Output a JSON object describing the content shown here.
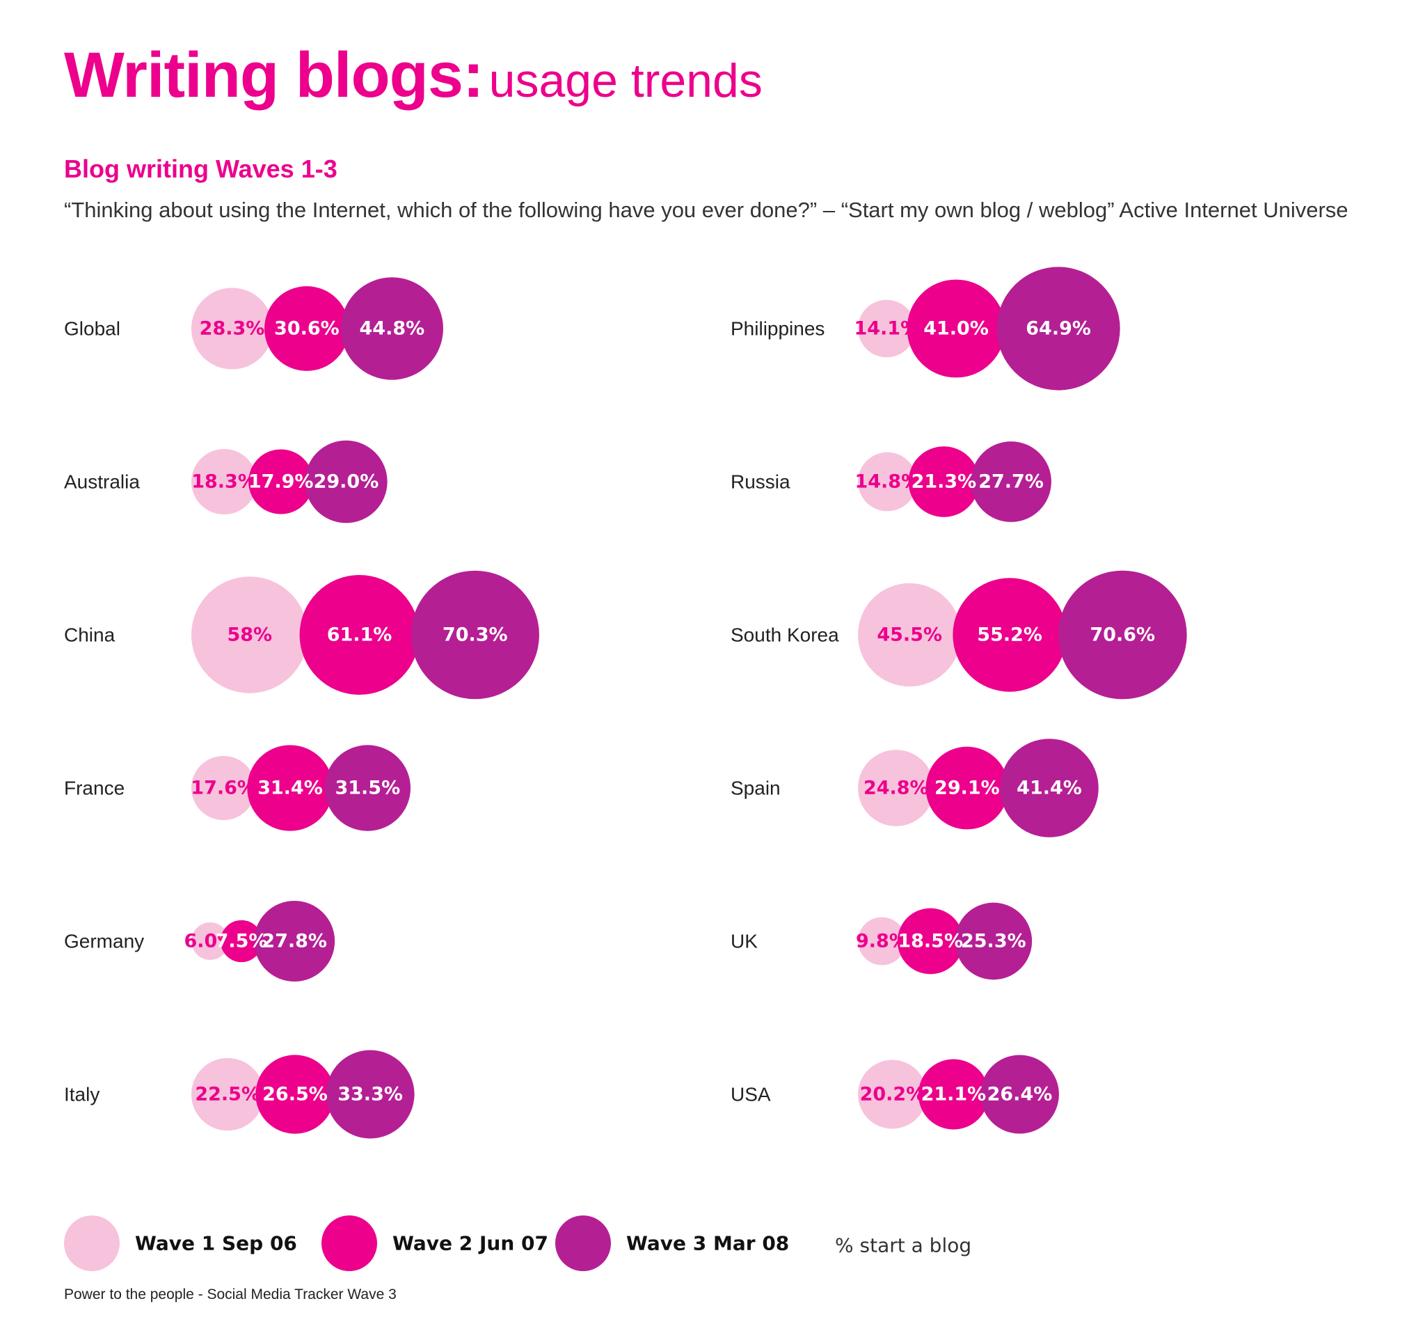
{
  "header": {
    "title_main": "Writing blogs:",
    "title_sub": "usage trends",
    "subtitle": "Blog writing Waves 1-3",
    "question": "“Thinking about using the Internet, which of the following have you ever done?” – “Start my own blog / weblog” Active Internet Universe"
  },
  "colors": {
    "wave1": "#f7c2dc",
    "wave2": "#ec008c",
    "wave3": "#b51f94",
    "wave1_text": "#ec008c",
    "wave_text_light": "#ffffff"
  },
  "chart_data": {
    "type": "bubble",
    "unit": "% start a blog",
    "series": [
      {
        "name": "Wave 1 Sep 06"
      },
      {
        "name": "Wave 2 Jun 07"
      },
      {
        "name": "Wave 3 Mar 08"
      }
    ],
    "groups": [
      {
        "column": "left",
        "countries": [
          {
            "name": "Global",
            "values": [
              28.3,
              30.6,
              44.8
            ],
            "labels": [
              "28.3%",
              "30.6%",
              "44.8%"
            ]
          },
          {
            "name": "Australia",
            "values": [
              18.3,
              17.9,
              29.0
            ],
            "labels": [
              "18.3%",
              "17.9%",
              "29.0%"
            ]
          },
          {
            "name": "China",
            "values": [
              58,
              61.1,
              70.3
            ],
            "labels": [
              "58%",
              "61.1%",
              "70.3%"
            ]
          },
          {
            "name": "France",
            "values": [
              17.6,
              31.4,
              31.5
            ],
            "labels": [
              "17.6%",
              "31.4%",
              "31.5%"
            ]
          },
          {
            "name": "Germany",
            "values": [
              6.0,
              7.5,
              27.8
            ],
            "labels": [
              "6.0%",
              "7.5%",
              "27.8%"
            ]
          },
          {
            "name": "Italy",
            "values": [
              22.5,
              26.5,
              33.3
            ],
            "labels": [
              "22.5%",
              "26.5%",
              "33.3%"
            ]
          }
        ]
      },
      {
        "column": "right",
        "countries": [
          {
            "name": "Philippines",
            "values": [
              14.1,
              41.0,
              64.9
            ],
            "labels": [
              "14.1%",
              "41.0%",
              "64.9%"
            ]
          },
          {
            "name": "Russia",
            "values": [
              14.8,
              21.3,
              27.7
            ],
            "labels": [
              "14.8%",
              "21.3%",
              "27.7%"
            ]
          },
          {
            "name": "South Korea",
            "values": [
              45.5,
              55.2,
              70.6
            ],
            "labels": [
              "45.5%",
              "55.2%",
              "70.6%"
            ]
          },
          {
            "name": "Spain",
            "values": [
              24.8,
              29.1,
              41.4
            ],
            "labels": [
              "24.8%",
              "29.1%",
              "41.4%"
            ]
          },
          {
            "name": "UK",
            "values": [
              9.8,
              18.5,
              25.3
            ],
            "labels": [
              "9.8%",
              "18.5%",
              "25.3%"
            ]
          },
          {
            "name": "USA",
            "values": [
              20.2,
              21.1,
              26.4
            ],
            "labels": [
              "20.2%",
              "21.1%",
              "26.4%"
            ]
          }
        ]
      }
    ],
    "legend": {
      "placement": "bottom",
      "items": [
        "Wave 1 Sep 06",
        "Wave 2 Jun 07",
        "Wave 3 Mar 08"
      ],
      "note": "% start a blog"
    }
  },
  "footer": {
    "source": "Power to the people - Social Media Tracker Wave 3"
  }
}
